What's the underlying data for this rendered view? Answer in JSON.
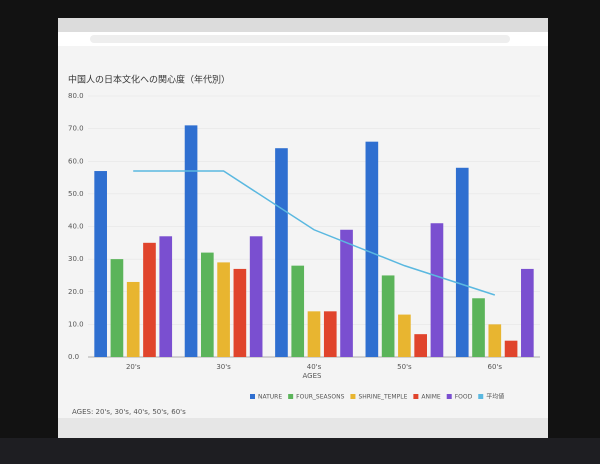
{
  "chart_data": {
    "type": "bar",
    "title": "中国人の日本文化への関心度（年代別）",
    "categories": [
      "20's",
      "30's",
      "40's",
      "50's",
      "60's"
    ],
    "xlabel": "AGES",
    "filter": "AGES: 20's, 30's, 40's, 50's, 60's",
    "series": [
      {
        "name": "NATURE",
        "color": "#2f6fd0",
        "values": [
          57,
          71,
          64,
          66,
          58
        ]
      },
      {
        "name": "FOUR_SEASONS",
        "color": "#5bb45a",
        "values": [
          30,
          32,
          28,
          25,
          18
        ]
      },
      {
        "name": "SHRINE_TEMPLE",
        "color": "#e8b530",
        "values": [
          23,
          29,
          14,
          13,
          10
        ]
      },
      {
        "name": "ANIME",
        "color": "#e0442c",
        "values": [
          35,
          27,
          14,
          7,
          5
        ]
      },
      {
        "name": "FOOD",
        "color": "#7a4fd0",
        "values": [
          37,
          37,
          39,
          41,
          27
        ]
      },
      {
        "name": "平均値",
        "color": "#5ab8e0",
        "type": "line",
        "values": [
          57,
          57,
          39,
          28,
          19
        ]
      }
    ],
    "ylim": [
      0,
      80
    ],
    "yticks": [
      {
        "value": 0,
        "label": "0.0"
      },
      {
        "value": 10,
        "label": "10.0"
      },
      {
        "value": 20,
        "label": "20.0"
      },
      {
        "value": 30,
        "label": "30.0"
      },
      {
        "value": 40,
        "label": "40.0"
      },
      {
        "value": 50,
        "label": "50.0"
      },
      {
        "value": 60,
        "label": "60.0"
      },
      {
        "value": 70,
        "label": "70.0"
      },
      {
        "value": 80,
        "label": "80.0"
      }
    ],
    "grid": true
  }
}
